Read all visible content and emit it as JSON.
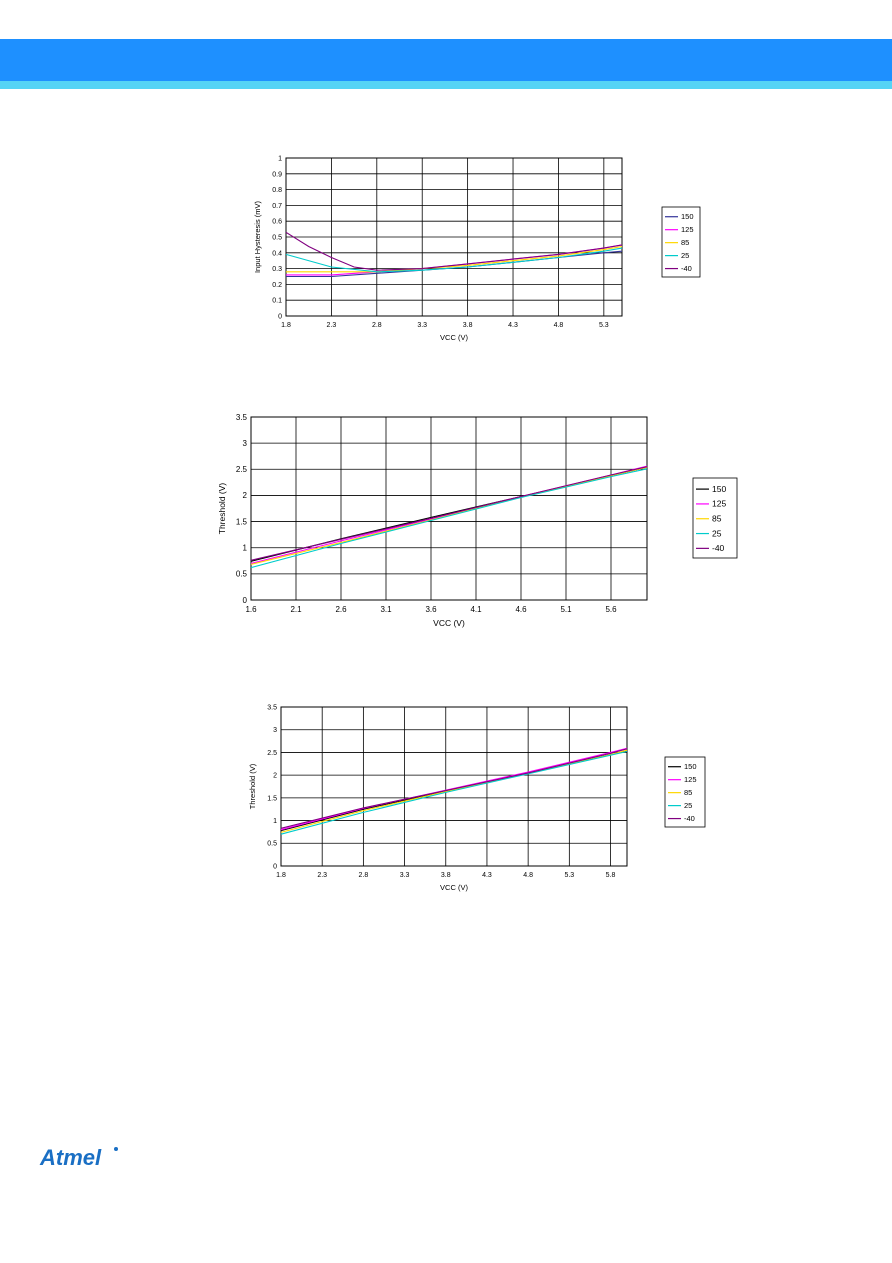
{
  "header": {
    "band_color": "#1e90ff",
    "stripe_color": "#55d4f5"
  },
  "footer": {
    "logo_text": "Atmel",
    "logo_color": "#1a6fc4"
  },
  "colors": {
    "150": "#333399",
    "125": "#ff00ff",
    "85": "#ffd700",
    "25": "#00cccc",
    "-40": "#800080"
  },
  "colors_dark": {
    "150": "#000000",
    "125": "#ff00ff",
    "85": "#ffd700",
    "25": "#00cccc",
    "-40": "#800080"
  },
  "chart_data": [
    {
      "type": "line",
      "xlabel": "VCC (V)",
      "ylabel": "Input Hysteresis (mV)",
      "xlim": [
        1.8,
        5.5
      ],
      "ylim": [
        0,
        1
      ],
      "xticks": [
        "1.8",
        "2.3",
        "2.8",
        "3.3",
        "3.8",
        "4.3",
        "4.8",
        "5.3"
      ],
      "yticks": [
        "0",
        "0.1",
        "0.2",
        "0.3",
        "0.4",
        "0.5",
        "0.6",
        "0.7",
        "0.8",
        "0.9",
        "1"
      ],
      "legend": [
        "150",
        "125",
        "85",
        "25",
        "-40"
      ],
      "legend_position": "right",
      "series": [
        {
          "name": "150",
          "x": [
            1.8,
            2.3,
            2.8,
            3.3,
            3.8,
            4.3,
            4.8,
            5.3,
            5.5
          ],
          "y": [
            0.25,
            0.25,
            0.27,
            0.29,
            0.31,
            0.34,
            0.37,
            0.4,
            0.41
          ]
        },
        {
          "name": "125",
          "x": [
            1.8,
            2.3,
            2.8,
            3.3,
            3.8,
            4.3,
            4.8,
            5.3,
            5.5
          ],
          "y": [
            0.26,
            0.26,
            0.28,
            0.3,
            0.33,
            0.36,
            0.39,
            0.43,
            0.45
          ]
        },
        {
          "name": "85",
          "x": [
            1.8,
            2.3,
            2.8,
            3.3,
            3.8,
            4.3,
            4.8,
            5.3,
            5.5
          ],
          "y": [
            0.28,
            0.28,
            0.28,
            0.3,
            0.32,
            0.35,
            0.38,
            0.42,
            0.44
          ]
        },
        {
          "name": "25",
          "x": [
            1.8,
            2.3,
            2.8,
            3.3,
            3.8,
            4.3,
            4.8,
            5.3,
            5.5
          ],
          "y": [
            0.39,
            0.31,
            0.28,
            0.29,
            0.31,
            0.34,
            0.37,
            0.41,
            0.43
          ]
        },
        {
          "name": "-40",
          "x": [
            1.8,
            2.05,
            2.3,
            2.55,
            2.8,
            3.3,
            3.8,
            4.3,
            4.8,
            5.3,
            5.5
          ],
          "y": [
            0.53,
            0.44,
            0.37,
            0.31,
            0.29,
            0.3,
            0.33,
            0.36,
            0.39,
            0.43,
            0.45
          ]
        }
      ]
    },
    {
      "type": "line",
      "xlabel": "VCC (V)",
      "ylabel": "Threshold (V)",
      "xlim": [
        1.6,
        6.0
      ],
      "ylim": [
        0,
        3.5
      ],
      "xticks": [
        "1.6",
        "2.1",
        "2.6",
        "3.1",
        "3.6",
        "4.1",
        "4.6",
        "5.1",
        "5.6"
      ],
      "yticks": [
        "0",
        "0.5",
        "1",
        "1.5",
        "2",
        "2.5",
        "3",
        "3.5"
      ],
      "legend": [
        "150",
        "125",
        "85",
        "25",
        "-40"
      ],
      "legend_position": "right",
      "series": [
        {
          "name": "150",
          "x": [
            1.6,
            2.6,
            3.6,
            4.6,
            5.6,
            6.0
          ],
          "y": [
            0.74,
            1.17,
            1.58,
            1.98,
            2.38,
            2.54
          ]
        },
        {
          "name": "125",
          "x": [
            1.6,
            2.6,
            3.6,
            4.6,
            5.6,
            6.0
          ],
          "y": [
            0.7,
            1.13,
            1.55,
            1.98,
            2.39,
            2.56
          ]
        },
        {
          "name": "85",
          "x": [
            1.6,
            2.6,
            3.6,
            4.6,
            5.6,
            6.0
          ],
          "y": [
            0.68,
            1.1,
            1.53,
            1.97,
            2.38,
            2.54
          ]
        },
        {
          "name": "25",
          "x": [
            1.6,
            2.6,
            3.6,
            4.6,
            5.6,
            6.0
          ],
          "y": [
            0.62,
            1.08,
            1.52,
            1.96,
            2.36,
            2.51
          ]
        },
        {
          "name": "-40",
          "x": [
            1.6,
            2.6,
            3.6,
            4.6,
            5.6,
            6.0
          ],
          "y": [
            0.76,
            1.16,
            1.56,
            1.98,
            2.39,
            2.55
          ]
        }
      ]
    },
    {
      "type": "line",
      "xlabel": "VCC (V)",
      "ylabel": "Threshold (V)",
      "xlim": [
        1.8,
        6.0
      ],
      "ylim": [
        0,
        3.5
      ],
      "xticks": [
        "1.8",
        "2.3",
        "2.8",
        "3.3",
        "3.8",
        "4.3",
        "4.8",
        "5.3",
        "5.8"
      ],
      "yticks": [
        "0",
        "0.5",
        "1",
        "1.5",
        "2",
        "2.5",
        "3",
        "3.5"
      ],
      "legend": [
        "150",
        "125",
        "85",
        "25",
        "-40"
      ],
      "legend_position": "right",
      "series": [
        {
          "name": "150",
          "x": [
            1.8,
            2.8,
            3.8,
            4.8,
            5.8,
            6.0
          ],
          "y": [
            0.78,
            1.25,
            1.65,
            2.04,
            2.45,
            2.53
          ]
        },
        {
          "name": "125",
          "x": [
            1.8,
            2.8,
            3.8,
            4.8,
            5.8,
            6.0
          ],
          "y": [
            0.8,
            1.27,
            1.67,
            2.07,
            2.5,
            2.59
          ]
        },
        {
          "name": "85",
          "x": [
            1.8,
            2.8,
            3.8,
            4.8,
            5.8,
            6.0
          ],
          "y": [
            0.74,
            1.22,
            1.64,
            2.04,
            2.45,
            2.55
          ]
        },
        {
          "name": "25",
          "x": [
            1.8,
            2.8,
            3.8,
            4.8,
            5.8,
            6.0
          ],
          "y": [
            0.7,
            1.18,
            1.62,
            2.03,
            2.44,
            2.52
          ]
        },
        {
          "name": "-40",
          "x": [
            1.8,
            2.8,
            3.8,
            4.8,
            5.8,
            6.0
          ],
          "y": [
            0.83,
            1.28,
            1.66,
            2.05,
            2.48,
            2.58
          ]
        }
      ]
    }
  ]
}
